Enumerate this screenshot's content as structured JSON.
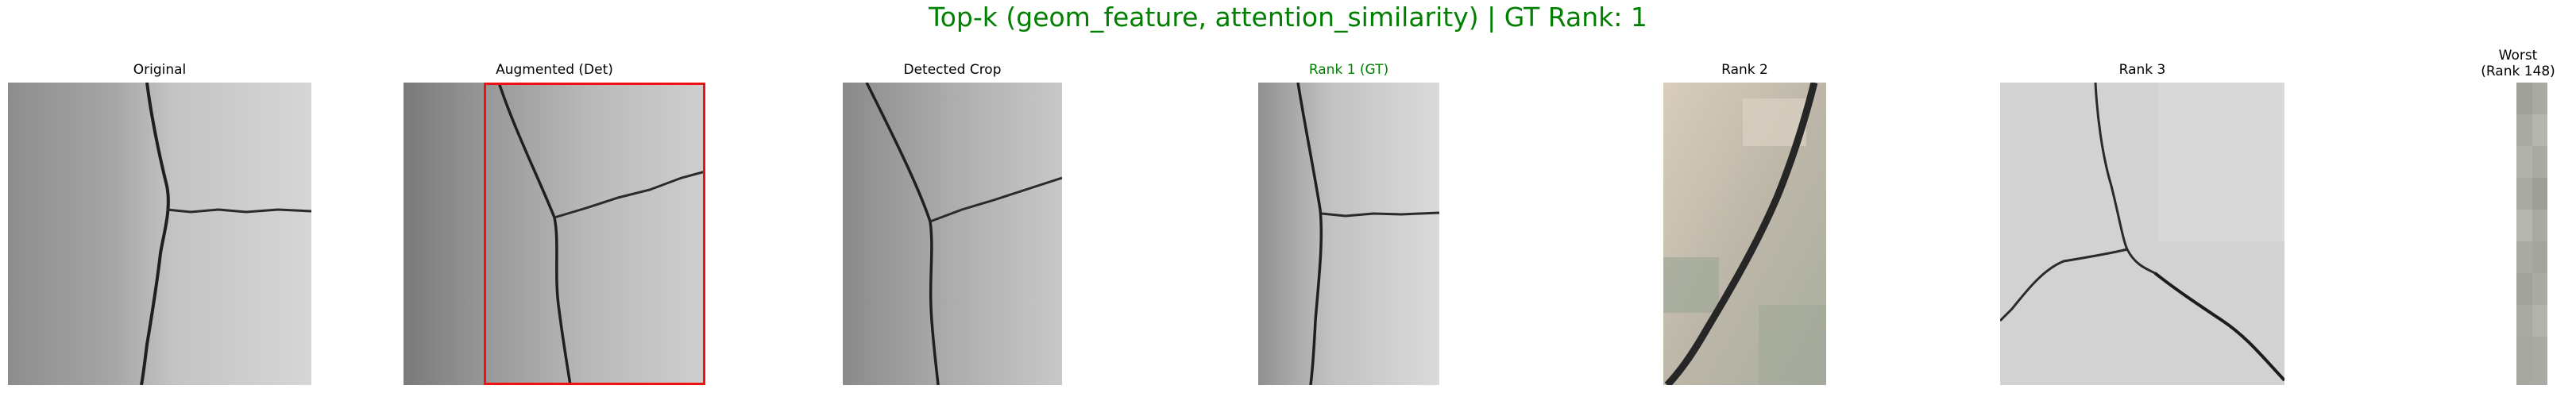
{
  "figure": {
    "title": "Top-k (geom_feature, attention_similarity) | GT Rank: 1",
    "title_color": "#008000",
    "box_color": "#ee1111"
  },
  "panels": [
    {
      "label": "Original"
    },
    {
      "label": "Augmented (Det)"
    },
    {
      "label": "Detected Crop"
    },
    {
      "label": "Rank 1 (GT)",
      "label_color": "#008000"
    },
    {
      "label": "Rank 2"
    },
    {
      "label": "Rank 3"
    },
    {
      "label_line1": "Worst",
      "label_line2": "(Rank 148)"
    }
  ]
}
